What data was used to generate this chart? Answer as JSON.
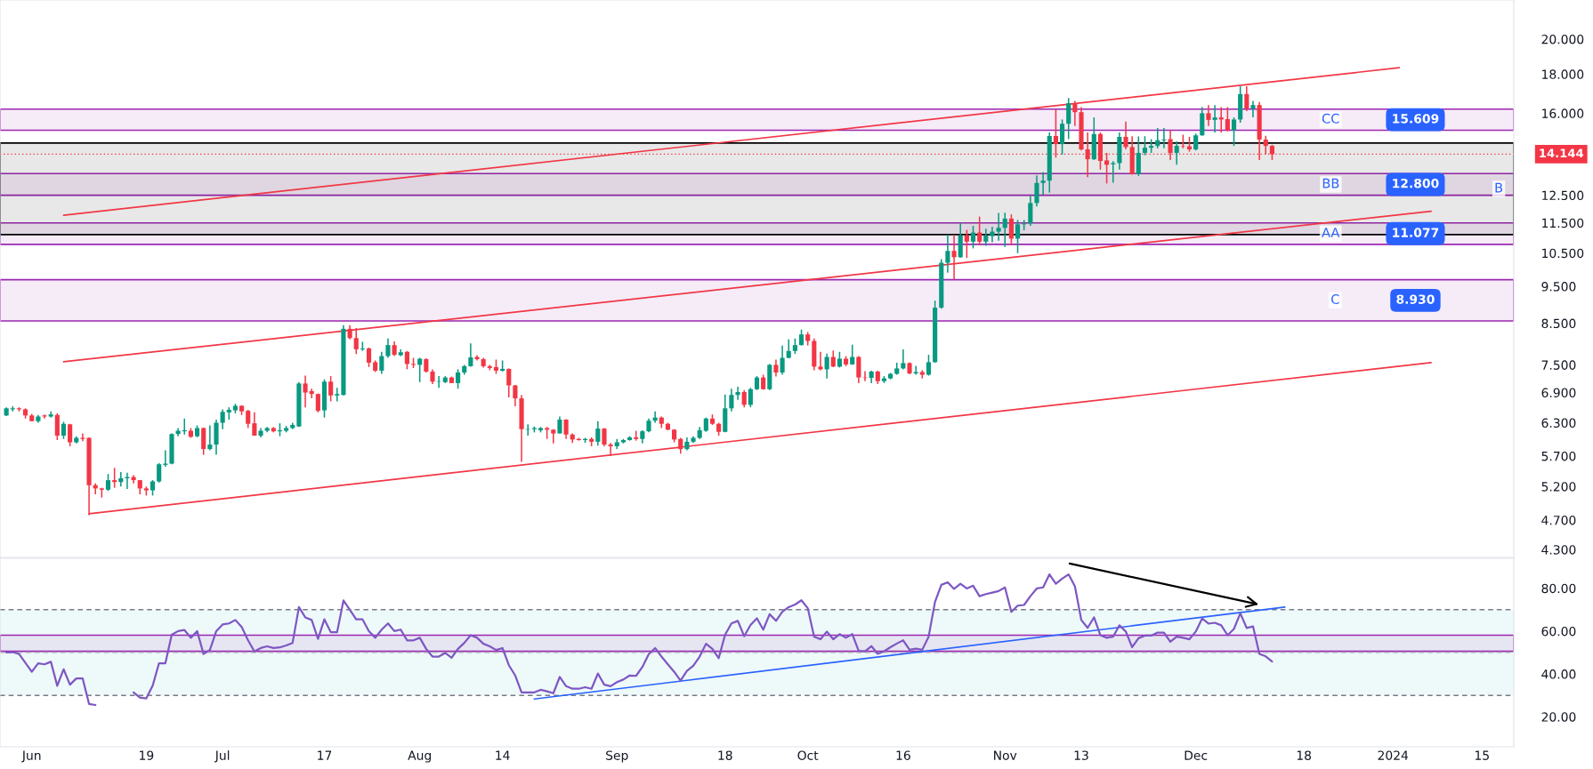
{
  "chart_data": [
    {
      "type": "candlestick",
      "log": true,
      "grid": false,
      "tick_labels": "y",
      "x": [
        "2023-05-28",
        "2023-05-29",
        "2023-05-30",
        "2023-05-31",
        "2023-06-01",
        "2023-06-02",
        "2023-06-03",
        "2023-06-04",
        "2023-06-05",
        "2023-06-06",
        "2023-06-07",
        "2023-06-08",
        "2023-06-09",
        "2023-06-10",
        "2023-06-11",
        "2023-06-12",
        "2023-06-13",
        "2023-06-14",
        "2023-06-15",
        "2023-06-16",
        "2023-06-17",
        "2023-06-18",
        "2023-06-19",
        "2023-06-20",
        "2023-06-21",
        "2023-06-22",
        "2023-06-23",
        "2023-06-24",
        "2023-06-25",
        "2023-06-26",
        "2023-06-27",
        "2023-06-28",
        "2023-06-29",
        "2023-06-30",
        "2023-07-01",
        "2023-07-02",
        "2023-07-03",
        "2023-07-04",
        "2023-07-05",
        "2023-07-06",
        "2023-07-07",
        "2023-07-08",
        "2023-07-09",
        "2023-07-10",
        "2023-07-11",
        "2023-07-12",
        "2023-07-13",
        "2023-07-14",
        "2023-07-15",
        "2023-07-16",
        "2023-07-17",
        "2023-07-18",
        "2023-07-19",
        "2023-07-20",
        "2023-07-21",
        "2023-07-22",
        "2023-07-23",
        "2023-07-24",
        "2023-07-25",
        "2023-07-26",
        "2023-07-27",
        "2023-07-28",
        "2023-07-29",
        "2023-07-30",
        "2023-07-31",
        "2023-08-01",
        "2023-08-02",
        "2023-08-03",
        "2023-08-04",
        "2023-08-05",
        "2023-08-06",
        "2023-08-07",
        "2023-08-08",
        "2023-08-09",
        "2023-08-10",
        "2023-08-11",
        "2023-08-12",
        "2023-08-13",
        "2023-08-14",
        "2023-08-15",
        "2023-08-16",
        "2023-08-17",
        "2023-08-18",
        "2023-08-19",
        "2023-08-20",
        "2023-08-21",
        "2023-08-22",
        "2023-08-23",
        "2023-08-24",
        "2023-08-25",
        "2023-08-26",
        "2023-08-27",
        "2023-08-28",
        "2023-08-29",
        "2023-08-30",
        "2023-08-31",
        "2023-09-01",
        "2023-09-02",
        "2023-09-03",
        "2023-09-04",
        "2023-09-05",
        "2023-09-06",
        "2023-09-07",
        "2023-09-08",
        "2023-09-09",
        "2023-09-10",
        "2023-09-11",
        "2023-09-12",
        "2023-09-13",
        "2023-09-14",
        "2023-09-15",
        "2023-09-16",
        "2023-09-17",
        "2023-09-18",
        "2023-09-19",
        "2023-09-20",
        "2023-09-21",
        "2023-09-22",
        "2023-09-23",
        "2023-09-24",
        "2023-09-25",
        "2023-09-26",
        "2023-09-27",
        "2023-09-28",
        "2023-09-29",
        "2023-09-30",
        "2023-10-01",
        "2023-10-02",
        "2023-10-03",
        "2023-10-04",
        "2023-10-05",
        "2023-10-06",
        "2023-10-07",
        "2023-10-08",
        "2023-10-09",
        "2023-10-10",
        "2023-10-11",
        "2023-10-12",
        "2023-10-13",
        "2023-10-14",
        "2023-10-15",
        "2023-10-16",
        "2023-10-17",
        "2023-10-18",
        "2023-10-19",
        "2023-10-20",
        "2023-10-21",
        "2023-10-22",
        "2023-10-23",
        "2023-10-24",
        "2023-10-25",
        "2023-10-26",
        "2023-10-27",
        "2023-10-28",
        "2023-10-29",
        "2023-10-30",
        "2023-10-31",
        "2023-11-01",
        "2023-11-02",
        "2023-11-03",
        "2023-11-04",
        "2023-11-05",
        "2023-11-06",
        "2023-11-07",
        "2023-11-08",
        "2023-11-09",
        "2023-11-10",
        "2023-11-11",
        "2023-11-12",
        "2023-11-13",
        "2023-11-14",
        "2023-11-15",
        "2023-11-16",
        "2023-11-17",
        "2023-11-18",
        "2023-11-19",
        "2023-11-20",
        "2023-11-21",
        "2023-11-22",
        "2023-11-23",
        "2023-11-24",
        "2023-11-25",
        "2023-11-26",
        "2023-11-27",
        "2023-11-28",
        "2023-11-29",
        "2023-11-30",
        "2023-12-01",
        "2023-12-02",
        "2023-12-03",
        "2023-12-04",
        "2023-12-05",
        "2023-12-06",
        "2023-12-07",
        "2023-12-08",
        "2023-12-09",
        "2023-12-10",
        "2023-12-11",
        "2023-12-12",
        "2023-12-13"
      ],
      "ohlc": [
        [
          6.44,
          6.6,
          6.43,
          6.58
        ],
        [
          6.56,
          6.62,
          6.52,
          6.58
        ],
        [
          6.58,
          6.6,
          6.52,
          6.56
        ],
        [
          6.56,
          6.58,
          6.38,
          6.44
        ],
        [
          6.44,
          6.47,
          6.33,
          6.33
        ],
        [
          6.33,
          6.45,
          6.3,
          6.42
        ],
        [
          6.44,
          6.46,
          6.38,
          6.42
        ],
        [
          6.42,
          6.52,
          6.4,
          6.46
        ],
        [
          6.45,
          6.48,
          5.98,
          6.06
        ],
        [
          6.06,
          6.32,
          6.0,
          6.28
        ],
        [
          6.27,
          6.28,
          5.87,
          5.94
        ],
        [
          5.94,
          6.05,
          5.92,
          6.02
        ],
        [
          6.02,
          6.1,
          5.96,
          6.0
        ],
        [
          6.02,
          6.03,
          4.77,
          5.22
        ],
        [
          5.22,
          5.25,
          5.08,
          5.17
        ],
        [
          5.17,
          5.18,
          5.03,
          5.15
        ],
        [
          5.15,
          5.4,
          5.13,
          5.3
        ],
        [
          5.3,
          5.5,
          5.18,
          5.27
        ],
        [
          5.27,
          5.43,
          5.2,
          5.33
        ],
        [
          5.33,
          5.42,
          5.16,
          5.35
        ],
        [
          5.35,
          5.38,
          5.25,
          5.3
        ],
        [
          5.3,
          5.3,
          5.08,
          5.17
        ],
        [
          5.17,
          5.2,
          5.06,
          5.14
        ],
        [
          5.14,
          5.3,
          5.06,
          5.28
        ],
        [
          5.28,
          5.58,
          5.26,
          5.56
        ],
        [
          5.55,
          5.8,
          5.52,
          5.57
        ],
        [
          5.57,
          6.1,
          5.56,
          6.09
        ],
        [
          6.09,
          6.2,
          6.05,
          6.15
        ],
        [
          6.14,
          6.38,
          6.08,
          6.16
        ],
        [
          6.15,
          6.2,
          6.02,
          6.04
        ],
        [
          6.05,
          6.25,
          6.03,
          6.2
        ],
        [
          6.2,
          6.21,
          5.72,
          5.82
        ],
        [
          5.82,
          6.25,
          5.8,
          5.9
        ],
        [
          5.9,
          6.36,
          5.72,
          6.3
        ],
        [
          6.3,
          6.56,
          6.18,
          6.51
        ],
        [
          6.5,
          6.6,
          6.36,
          6.55
        ],
        [
          6.54,
          6.67,
          6.48,
          6.63
        ],
        [
          6.63,
          6.64,
          6.45,
          6.52
        ],
        [
          6.53,
          6.55,
          6.2,
          6.28
        ],
        [
          6.29,
          6.5,
          6.06,
          6.06
        ],
        [
          6.06,
          6.2,
          6.03,
          6.15
        ],
        [
          6.15,
          6.22,
          6.12,
          6.2
        ],
        [
          6.2,
          6.22,
          6.12,
          6.14
        ],
        [
          6.14,
          6.29,
          6.05,
          6.16
        ],
        [
          6.15,
          6.24,
          6.12,
          6.2
        ],
        [
          6.2,
          6.3,
          6.18,
          6.26
        ],
        [
          6.23,
          7.12,
          6.22,
          7.09
        ],
        [
          7.09,
          7.26,
          6.6,
          6.9
        ],
        [
          6.93,
          6.98,
          6.78,
          6.87
        ],
        [
          6.87,
          6.88,
          6.5,
          6.53
        ],
        [
          6.54,
          7.18,
          6.4,
          7.13
        ],
        [
          7.13,
          7.25,
          6.72,
          6.84
        ],
        [
          6.84,
          7.0,
          6.72,
          6.87
        ],
        [
          6.85,
          8.45,
          6.84,
          8.36
        ],
        [
          8.36,
          8.45,
          8.1,
          8.13
        ],
        [
          8.13,
          8.38,
          7.75,
          7.86
        ],
        [
          7.86,
          8.04,
          7.82,
          7.88
        ],
        [
          7.88,
          7.9,
          7.45,
          7.55
        ],
        [
          7.56,
          7.6,
          7.34,
          7.37
        ],
        [
          7.37,
          7.8,
          7.3,
          7.7
        ],
        [
          7.7,
          8.12,
          7.66,
          7.96
        ],
        [
          7.96,
          8.05,
          7.7,
          7.73
        ],
        [
          7.72,
          7.86,
          7.7,
          7.79
        ],
        [
          7.8,
          7.82,
          7.4,
          7.52
        ],
        [
          7.52,
          7.66,
          7.43,
          7.5
        ],
        [
          7.5,
          7.66,
          7.12,
          7.64
        ],
        [
          7.63,
          7.65,
          7.33,
          7.35
        ],
        [
          7.35,
          7.4,
          7.08,
          7.13
        ],
        [
          7.13,
          7.25,
          7.0,
          7.14
        ],
        [
          7.12,
          7.25,
          7.1,
          7.22
        ],
        [
          7.22,
          7.24,
          7.1,
          7.1
        ],
        [
          7.1,
          7.4,
          6.98,
          7.33
        ],
        [
          7.33,
          7.5,
          7.28,
          7.47
        ],
        [
          7.47,
          8.0,
          7.46,
          7.67
        ],
        [
          7.68,
          7.72,
          7.6,
          7.63
        ],
        [
          7.63,
          7.66,
          7.44,
          7.47
        ],
        [
          7.47,
          7.5,
          7.38,
          7.43
        ],
        [
          7.45,
          7.62,
          7.3,
          7.37
        ],
        [
          7.37,
          7.6,
          7.35,
          7.41
        ],
        [
          7.41,
          7.42,
          6.8,
          7.05
        ],
        [
          7.05,
          7.06,
          6.62,
          6.78
        ],
        [
          6.78,
          6.85,
          5.6,
          6.18
        ],
        [
          6.17,
          6.27,
          6.06,
          6.18
        ],
        [
          6.18,
          6.23,
          6.12,
          6.2
        ],
        [
          6.16,
          6.22,
          6.12,
          6.2
        ],
        [
          6.2,
          6.22,
          6.0,
          6.17
        ],
        [
          6.17,
          6.18,
          5.92,
          6.1
        ],
        [
          6.1,
          6.42,
          6.1,
          6.36
        ],
        [
          6.36,
          6.37,
          6.0,
          6.08
        ],
        [
          6.08,
          6.1,
          5.93,
          5.99
        ],
        [
          6.0,
          6.02,
          5.97,
          5.98
        ],
        [
          5.98,
          6.02,
          5.93,
          6.0
        ],
        [
          6.0,
          6.03,
          5.87,
          5.95
        ],
        [
          5.95,
          6.33,
          5.88,
          6.19
        ],
        [
          6.19,
          6.2,
          5.87,
          5.9
        ],
        [
          5.9,
          5.93,
          5.7,
          5.87
        ],
        [
          5.87,
          6.0,
          5.82,
          5.94
        ],
        [
          5.94,
          6.0,
          5.92,
          5.98
        ],
        [
          5.98,
          6.05,
          5.97,
          6.03
        ],
        [
          6.03,
          6.15,
          5.97,
          6.0
        ],
        [
          6.0,
          6.16,
          5.92,
          6.14
        ],
        [
          6.14,
          6.38,
          6.12,
          6.34
        ],
        [
          6.34,
          6.52,
          6.3,
          6.4
        ],
        [
          6.4,
          6.42,
          6.2,
          6.28
        ],
        [
          6.28,
          6.3,
          6.16,
          6.17
        ],
        [
          6.17,
          6.18,
          5.94,
          5.99
        ],
        [
          6.0,
          6.02,
          5.74,
          5.82
        ],
        [
          5.82,
          6.03,
          5.8,
          5.95
        ],
        [
          5.95,
          6.05,
          5.93,
          6.02
        ],
        [
          6.02,
          6.22,
          6.0,
          6.16
        ],
        [
          6.15,
          6.4,
          6.13,
          6.38
        ],
        [
          6.38,
          6.46,
          6.26,
          6.28
        ],
        [
          6.28,
          6.3,
          6.06,
          6.13
        ],
        [
          6.13,
          6.86,
          6.12,
          6.58
        ],
        [
          6.58,
          6.98,
          6.52,
          6.85
        ],
        [
          6.85,
          7.02,
          6.75,
          6.91
        ],
        [
          6.91,
          6.95,
          6.6,
          6.65
        ],
        [
          6.65,
          7.0,
          6.6,
          6.97
        ],
        [
          6.97,
          7.25,
          6.95,
          7.22
        ],
        [
          7.22,
          7.28,
          6.96,
          6.97
        ],
        [
          6.97,
          7.52,
          6.95,
          7.5
        ],
        [
          7.5,
          7.62,
          7.24,
          7.33
        ],
        [
          7.33,
          7.95,
          7.28,
          7.66
        ],
        [
          7.66,
          8.1,
          7.65,
          7.82
        ],
        [
          7.82,
          8.12,
          7.75,
          7.96
        ],
        [
          7.96,
          8.34,
          7.95,
          8.22
        ],
        [
          8.22,
          8.28,
          7.95,
          8.06
        ],
        [
          8.06,
          8.12,
          7.38,
          7.46
        ],
        [
          7.46,
          7.8,
          7.38,
          7.4
        ],
        [
          7.4,
          7.76,
          7.2,
          7.68
        ],
        [
          7.68,
          7.83,
          7.45,
          7.46
        ],
        [
          7.46,
          7.8,
          7.44,
          7.64
        ],
        [
          7.64,
          7.7,
          7.47,
          7.51
        ],
        [
          7.51,
          7.97,
          7.5,
          7.68
        ],
        [
          7.68,
          7.7,
          7.1,
          7.22
        ],
        [
          7.22,
          7.36,
          7.14,
          7.21
        ],
        [
          7.21,
          7.37,
          7.1,
          7.35
        ],
        [
          7.35,
          7.37,
          7.08,
          7.14
        ],
        [
          7.14,
          7.25,
          7.1,
          7.2
        ],
        [
          7.2,
          7.32,
          7.18,
          7.3
        ],
        [
          7.3,
          7.55,
          7.28,
          7.42
        ],
        [
          7.42,
          7.86,
          7.4,
          7.54
        ],
        [
          7.54,
          7.56,
          7.29,
          7.31
        ],
        [
          7.31,
          7.48,
          7.28,
          7.34
        ],
        [
          7.34,
          7.38,
          7.2,
          7.28
        ],
        [
          7.28,
          7.73,
          7.26,
          7.56
        ],
        [
          7.56,
          9.1,
          7.55,
          8.91
        ],
        [
          8.91,
          10.31,
          8.88,
          10.2
        ],
        [
          10.2,
          11.1,
          9.9,
          10.57
        ],
        [
          10.57,
          11.1,
          9.7,
          10.37
        ],
        [
          10.37,
          11.5,
          10.35,
          11.07
        ],
        [
          11.07,
          11.26,
          10.35,
          10.87
        ],
        [
          10.87,
          11.4,
          10.65,
          11.17
        ],
        [
          11.17,
          11.72,
          10.75,
          10.87
        ],
        [
          10.87,
          11.3,
          10.73,
          11.07
        ],
        [
          11.05,
          11.37,
          10.85,
          11.2
        ],
        [
          11.2,
          11.85,
          10.9,
          11.33
        ],
        [
          11.33,
          11.86,
          10.7,
          11.65
        ],
        [
          11.65,
          11.8,
          10.75,
          10.97
        ],
        [
          10.97,
          11.6,
          10.5,
          11.45
        ],
        [
          11.45,
          11.6,
          11.25,
          11.48
        ],
        [
          11.48,
          12.47,
          11.4,
          12.21
        ],
        [
          12.21,
          13.27,
          12.08,
          12.97
        ],
        [
          12.97,
          13.4,
          12.52,
          13.06
        ],
        [
          13.06,
          15.1,
          12.6,
          14.94
        ],
        [
          14.94,
          16.2,
          14.0,
          14.58
        ],
        [
          14.58,
          15.7,
          14.13,
          15.5
        ],
        [
          15.5,
          16.75,
          14.8,
          16.49
        ],
        [
          16.49,
          16.6,
          15.4,
          16.05
        ],
        [
          16.05,
          16.3,
          14.3,
          14.35
        ],
        [
          14.35,
          15.1,
          13.2,
          13.93
        ],
        [
          13.93,
          15.8,
          13.9,
          15.03
        ],
        [
          15.03,
          15.1,
          13.5,
          13.86
        ],
        [
          13.88,
          14.2,
          12.95,
          13.7
        ],
        [
          13.72,
          13.85,
          12.98,
          13.77
        ],
        [
          13.77,
          15.1,
          13.5,
          14.9
        ],
        [
          14.9,
          15.6,
          14.35,
          14.45
        ],
        [
          14.45,
          14.93,
          13.3,
          13.32
        ],
        [
          13.32,
          14.92,
          13.25,
          14.2
        ],
        [
          14.2,
          14.93,
          14.1,
          14.42
        ],
        [
          14.42,
          14.8,
          14.2,
          14.5
        ],
        [
          14.5,
          15.3,
          14.4,
          14.75
        ],
        [
          14.74,
          15.3,
          14.4,
          14.78
        ],
        [
          14.8,
          15.2,
          13.9,
          14.2
        ],
        [
          14.2,
          14.7,
          13.7,
          14.5
        ],
        [
          14.5,
          15.0,
          14.4,
          14.48
        ],
        [
          14.48,
          14.9,
          14.25,
          14.35
        ],
        [
          14.35,
          15.05,
          14.3,
          14.97
        ],
        [
          14.97,
          16.3,
          14.95,
          16.0
        ],
        [
          16.0,
          16.4,
          15.4,
          15.68
        ],
        [
          15.68,
          16.4,
          15.1,
          15.8
        ],
        [
          15.8,
          16.3,
          15.1,
          15.7
        ],
        [
          15.72,
          16.3,
          15.15,
          15.2
        ],
        [
          15.2,
          15.8,
          14.5,
          15.7
        ],
        [
          15.7,
          17.35,
          15.55,
          16.95
        ],
        [
          16.95,
          17.35,
          16.1,
          16.23
        ],
        [
          16.23,
          16.6,
          15.8,
          16.4
        ],
        [
          16.4,
          16.55,
          13.9,
          14.78
        ],
        [
          14.78,
          14.95,
          14.15,
          14.5
        ],
        [
          14.5,
          14.55,
          13.9,
          14.144
        ]
      ],
      "colors": [
        "#089981",
        "#089981",
        "#f23645",
        "#f23645",
        "#f23645",
        "#089981",
        "#f23645",
        "#089981",
        "#f23645",
        "#089981",
        "#f23645",
        "#089981",
        "#f23645",
        "#f23645",
        "#f23645",
        "#f23645",
        "#089981",
        "#f23645",
        "#089981",
        "#089981",
        "#f23645",
        "#f23645",
        "#f23645",
        "#089981",
        "#089981",
        "#089981",
        "#089981",
        "#089981",
        "#089981",
        "#f23645",
        "#089981",
        "#f23645",
        "#089981",
        "#089981",
        "#089981",
        "#089981",
        "#089981",
        "#f23645",
        "#f23645",
        "#f23645",
        "#089981",
        "#089981",
        "#f23645",
        "#089981",
        "#089981",
        "#089981",
        "#089981",
        "#f23645",
        "#f23645",
        "#f23645",
        "#089981",
        "#f23645",
        "#089981",
        "#089981",
        "#f23645",
        "#f23645",
        "#089981",
        "#f23645",
        "#f23645",
        "#089981",
        "#089981",
        "#f23645",
        "#089981",
        "#f23645",
        "#f23645",
        "#089981",
        "#f23645",
        "#f23645",
        "#089981",
        "#089981",
        "#f23645",
        "#089981",
        "#089981",
        "#089981",
        "#f23645",
        "#f23645",
        "#f23645",
        "#f23645",
        "#089981",
        "#f23645",
        "#f23645",
        "#f23645",
        "#089981",
        "#089981",
        "#089981",
        "#f23645",
        "#f23645",
        "#089981",
        "#f23645",
        "#f23645",
        "#f23645",
        "#089981",
        "#f23645",
        "#089981",
        "#f23645",
        "#f23645",
        "#089981",
        "#089981",
        "#089981",
        "#f23645",
        "#089981",
        "#089981",
        "#089981",
        "#f23645",
        "#f23645",
        "#f23645",
        "#f23645",
        "#089981",
        "#089981",
        "#089981",
        "#089981",
        "#f23645",
        "#f23645",
        "#089981",
        "#089981",
        "#089981",
        "#f23645",
        "#089981",
        "#089981",
        "#f23645",
        "#089981",
        "#f23645",
        "#089981",
        "#089981",
        "#089981",
        "#089981",
        "#f23645",
        "#f23645",
        "#f23645",
        "#089981",
        "#f23645",
        "#089981",
        "#f23645",
        "#089981",
        "#f23645",
        "#f23645",
        "#089981",
        "#f23645",
        "#089981",
        "#089981",
        "#089981",
        "#089981",
        "#f23645",
        "#089981",
        "#f23645",
        "#089981",
        "#089981",
        "#089981",
        "#089981",
        "#f23645",
        "#089981",
        "#f23645",
        "#089981",
        "#f23645",
        "#089981",
        "#089981",
        "#089981",
        "#089981",
        "#f23645",
        "#089981",
        "#089981",
        "#089981",
        "#089981",
        "#089981",
        "#089981",
        "#f23645",
        "#089981",
        "#089981",
        "#f23645",
        "#f23645",
        "#f23645",
        "#089981",
        "#f23645",
        "#f23645",
        "#089981",
        "#089981",
        "#f23645",
        "#f23645",
        "#089981",
        "#089981",
        "#089981",
        "#089981",
        "#089981",
        "#f23645",
        "#089981",
        "#f23645",
        "#f23645",
        "#089981",
        "#089981",
        "#f23645",
        "#089981",
        "#f23645",
        "#f23645",
        "#089981",
        "#089981",
        "#f23645",
        "#089981",
        "#f23645",
        "#f23645",
        "#f23645"
      ],
      "series": [
        {
          "type": "line",
          "x": [
            "2023-06-06",
            "2024-01-02"
          ],
          "values": [
            11.77,
            18.35
          ],
          "color": "#f23645"
        },
        {
          "type": "line",
          "x": [
            "2023-06-06",
            "2024-01-07"
          ],
          "values": [
            7.57,
            11.91
          ],
          "color": "#f23645"
        },
        {
          "type": "line",
          "x": [
            "2023-06-10",
            "2024-01-07"
          ],
          "values": [
            4.79,
            7.55
          ],
          "color": "#f23645"
        }
      ],
      "bands": [
        {
          "axis": "y",
          "from": 15.2,
          "to": 16.2,
          "label": "CC",
          "color": "#9c27b0"
        },
        {
          "axis": "y",
          "from": 12.5,
          "to": 13.34,
          "label": "BB",
          "color": "#9c27b0"
        },
        {
          "axis": "y",
          "from": 10.78,
          "to": 11.5,
          "label": "AA",
          "color": "#9c27b0"
        },
        {
          "axis": "y",
          "from": 8.56,
          "to": 9.69,
          "label": "C",
          "color": "#9c27b0"
        },
        {
          "axis": "y",
          "from": 11.1,
          "to": 14.63,
          "label": "B",
          "color": "#000000"
        }
      ],
      "ref_lines": [
        {
          "axis": "y",
          "value": 14.144,
          "label": "14.144",
          "color": "#f23645",
          "line_style": "dotted"
        }
      ],
      "annotations": [
        "15.609",
        "12.800",
        "11.077",
        "8.930"
      ],
      "xlim": [
        "2023-05-27",
        "2024-01-20"
      ],
      "ylim": [
        4.2,
        22.5
      ],
      "yticks": [
        {
          "value": 4.3,
          "label": "4.300"
        },
        {
          "value": 4.7,
          "label": "4.700"
        },
        {
          "value": 5.2,
          "label": "5.200"
        },
        {
          "value": 5.7,
          "label": "5.700"
        },
        {
          "value": 6.3,
          "label": "6.300"
        },
        {
          "value": 6.9,
          "label": "6.900"
        },
        {
          "value": 7.5,
          "label": "7.500"
        },
        {
          "value": 8.5,
          "label": "8.500"
        },
        {
          "value": 9.5,
          "label": "9.500"
        },
        {
          "value": 10.5,
          "label": "10.500"
        },
        {
          "value": 11.5,
          "label": "11.500"
        },
        {
          "value": 12.5,
          "label": "12.500"
        },
        {
          "value": 16,
          "label": "16.000"
        },
        {
          "value": 18,
          "label": "18.000"
        },
        {
          "value": 20,
          "label": "20.000"
        }
      ]
    },
    {
      "type": "line",
      "grid": false,
      "x": [
        "2023-05-28",
        "2023-05-29",
        "2023-05-30",
        "2023-05-31",
        "2023-06-01",
        "2023-06-02",
        "2023-06-03",
        "2023-06-04",
        "2023-06-05",
        "2023-06-06",
        "2023-06-07",
        "2023-06-08",
        "2023-06-09",
        "2023-06-10",
        "2023-06-11",
        "2023-06-12",
        "2023-06-13",
        "2023-06-14",
        "2023-06-15",
        "2023-06-16",
        "2023-06-17",
        "2023-06-18",
        "2023-06-19",
        "2023-06-20",
        "2023-06-21",
        "2023-06-22",
        "2023-06-23",
        "2023-06-24",
        "2023-06-25",
        "2023-06-26",
        "2023-06-27",
        "2023-06-28",
        "2023-06-29",
        "2023-06-30",
        "2023-07-01",
        "2023-07-02",
        "2023-07-03",
        "2023-07-04",
        "2023-07-05",
        "2023-07-06",
        "2023-07-07",
        "2023-07-08",
        "2023-07-09",
        "2023-07-10",
        "2023-07-11",
        "2023-07-12",
        "2023-07-13",
        "2023-07-14",
        "2023-07-15",
        "2023-07-16",
        "2023-07-17",
        "2023-07-18",
        "2023-07-19",
        "2023-07-20",
        "2023-07-21",
        "2023-07-22",
        "2023-07-23",
        "2023-07-24",
        "2023-07-25",
        "2023-07-26",
        "2023-07-27",
        "2023-07-28",
        "2023-07-29",
        "2023-07-30",
        "2023-07-31",
        "2023-08-01",
        "2023-08-02",
        "2023-08-03",
        "2023-08-04",
        "2023-08-05",
        "2023-08-06",
        "2023-08-07",
        "2023-08-08",
        "2023-08-09",
        "2023-08-10",
        "2023-08-11",
        "2023-08-12",
        "2023-08-13",
        "2023-08-14",
        "2023-08-15",
        "2023-08-16",
        "2023-08-17",
        "2023-08-18",
        "2023-08-19",
        "2023-08-20",
        "2023-08-21",
        "2023-08-22",
        "2023-08-23",
        "2023-08-24",
        "2023-08-25",
        "2023-08-26",
        "2023-08-27",
        "2023-08-28",
        "2023-08-29",
        "2023-08-30",
        "2023-08-31",
        "2023-09-01",
        "2023-09-02",
        "2023-09-03",
        "2023-09-04",
        "2023-09-05",
        "2023-09-06",
        "2023-09-07",
        "2023-09-08",
        "2023-09-09",
        "2023-09-10",
        "2023-09-11",
        "2023-09-12",
        "2023-09-13",
        "2023-09-14",
        "2023-09-15",
        "2023-09-16",
        "2023-09-17",
        "2023-09-18",
        "2023-09-19",
        "2023-09-20",
        "2023-09-21",
        "2023-09-22",
        "2023-09-23",
        "2023-09-24",
        "2023-09-25",
        "2023-09-26",
        "2023-09-27",
        "2023-09-28",
        "2023-09-29",
        "2023-09-30",
        "2023-10-01",
        "2023-10-02",
        "2023-10-03",
        "2023-10-04",
        "2023-10-05",
        "2023-10-06",
        "2023-10-07",
        "2023-10-08",
        "2023-10-09",
        "2023-10-10",
        "2023-10-11",
        "2023-10-12",
        "2023-10-13",
        "2023-10-14",
        "2023-10-15",
        "2023-10-16",
        "2023-10-17",
        "2023-10-18",
        "2023-10-19",
        "2023-10-20",
        "2023-10-21",
        "2023-10-22",
        "2023-10-23",
        "2023-10-24",
        "2023-10-25",
        "2023-10-26",
        "2023-10-27",
        "2023-10-28",
        "2023-10-29",
        "2023-10-30",
        "2023-10-31",
        "2023-11-01",
        "2023-11-02",
        "2023-11-03",
        "2023-11-04",
        "2023-11-05",
        "2023-11-06",
        "2023-11-07",
        "2023-11-08",
        "2023-11-09",
        "2023-11-10",
        "2023-11-11",
        "2023-11-12",
        "2023-11-13",
        "2023-11-14",
        "2023-11-15",
        "2023-11-16",
        "2023-11-17",
        "2023-11-18",
        "2023-11-19",
        "2023-11-20",
        "2023-11-21",
        "2023-11-22",
        "2023-11-23",
        "2023-11-24",
        "2023-11-25",
        "2023-11-26",
        "2023-11-27",
        "2023-11-28",
        "2023-11-29",
        "2023-11-30",
        "2023-12-01",
        "2023-12-02",
        "2023-12-03",
        "2023-12-04",
        "2023-12-05",
        "2023-12-06",
        "2023-12-07",
        "2023-12-08",
        "2023-12-09",
        "2023-12-10",
        "2023-12-11",
        "2023-12-12",
        "2023-12-13"
      ],
      "series": [
        {
          "color": "#7e57c2",
          "values": [
            50,
            50.2,
            49.3,
            45.2,
            41,
            45,
            44.5,
            45.7,
            34.5,
            42.2,
            35,
            37.9,
            37.9,
            26,
            25.5,
            null,
            null,
            null,
            null,
            null,
            31.4,
            29,
            28.6,
            34.5,
            45,
            45,
            58.3,
            60,
            60.5,
            56.9,
            60,
            49.3,
            51.2,
            60,
            63.1,
            63.6,
            65.2,
            61.9,
            55.7,
            50.5,
            52.1,
            52.9,
            52.1,
            52.4,
            53.3,
            54.5,
            71.2,
            66.4,
            65.2,
            56.4,
            65.5,
            59.5,
            59.5,
            74.3,
            70,
            65.5,
            65.5,
            60,
            56.9,
            60.7,
            63.6,
            60,
            60.7,
            55.7,
            55.7,
            56.9,
            51.7,
            48.1,
            48.1,
            49.8,
            47.6,
            51.7,
            54.5,
            58.1,
            56.9,
            54.1,
            52.9,
            51.2,
            52.1,
            44.1,
            39.3,
            31.4,
            31.4,
            31.4,
            32.6,
            31.9,
            31,
            38.6,
            34.3,
            33.1,
            33.1,
            33.8,
            33.1,
            40.2,
            35,
            34.3,
            36.2,
            37.4,
            39.3,
            39.1,
            43.3,
            49.3,
            52.1,
            48.1,
            44.5,
            41,
            36.9,
            41.4,
            43.8,
            48.1,
            54.1,
            51.7,
            47.4,
            58.3,
            63.6,
            64.8,
            57.6,
            62.9,
            66,
            60.7,
            67.9,
            64.8,
            69,
            71.2,
            72.4,
            74.4,
            70.7,
            57.4,
            56.2,
            59.8,
            56.2,
            58.6,
            56.9,
            58.6,
            50.8,
            50.6,
            53,
            49.4,
            50.6,
            52.5,
            54.2,
            55.7,
            51.3,
            51.8,
            51.3,
            57.4,
            73.6,
            81.6,
            82.8,
            79.7,
            82.1,
            79.9,
            81.2,
            76.3,
            77.3,
            78,
            78.7,
            80.4,
            69,
            71.9,
            72.2,
            76.3,
            79.9,
            80.4,
            86.5,
            82.1,
            84.5,
            86.5,
            80.9,
            65.2,
            61.5,
            66.4,
            58.1,
            56.9,
            57.4,
            62.7,
            59.8,
            52.5,
            56.7,
            57.9,
            57.9,
            59.3,
            59.3,
            55,
            57.4,
            56.9,
            56.2,
            59.8,
            65.9,
            63.5,
            63.9,
            62.7,
            58.1,
            61,
            68.3,
            61.5,
            62.2,
            49.4,
            48.2,
            45.8
          ]
        },
        {
          "type": "line",
          "x": [
            "2023-08-19",
            "2023-12-15"
          ],
          "values": [
            28.3,
            71.2
          ],
          "color": "#2962ff"
        }
      ],
      "bands": [
        {
          "axis": "y",
          "from": 30,
          "to": 70,
          "color": "#eef9fa"
        },
        {
          "axis": "y",
          "from": 50.6,
          "to": 58.1,
          "color": "#9c27b0"
        }
      ],
      "ref_lines": [
        {
          "axis": "y",
          "value": 70,
          "color": "#787b86",
          "line_style": "dashed"
        },
        {
          "axis": "y",
          "value": 50,
          "color": "#b2b5be",
          "line_style": "dashed"
        },
        {
          "axis": "y",
          "value": 30,
          "color": "#787b86",
          "line_style": "dashed"
        }
      ],
      "xlim": [
        "2023-05-27",
        "2024-01-20"
      ],
      "xticks": [
        {
          "value": "2023-06-01",
          "label": "Jun"
        },
        {
          "value": "2023-06-19",
          "label": "19"
        },
        {
          "value": "2023-07-01",
          "label": "Jul"
        },
        {
          "value": "2023-07-17",
          "label": "17"
        },
        {
          "value": "2023-08-01",
          "label": "Aug"
        },
        {
          "value": "2023-08-14",
          "label": "14"
        },
        {
          "value": "2023-09-01",
          "label": "Sep"
        },
        {
          "value": "2023-09-18",
          "label": "18"
        },
        {
          "value": "2023-10-01",
          "label": "Oct"
        },
        {
          "value": "2023-10-16",
          "label": "16"
        },
        {
          "value": "2023-11-01",
          "label": "Nov"
        },
        {
          "value": "2023-11-13",
          "label": "13"
        },
        {
          "value": "2023-12-01",
          "label": "Dec"
        },
        {
          "value": "2023-12-18",
          "label": "18"
        },
        {
          "value": "2024-01-01",
          "label": "2024"
        },
        {
          "value": "2024-01-15",
          "label": "15"
        }
      ],
      "ylim": [
        6,
        94
      ],
      "yticks": [
        {
          "value": 20,
          "label": "20.00"
        },
        {
          "value": 40,
          "label": "40.00"
        },
        {
          "value": 60,
          "label": "60.00"
        },
        {
          "value": 80,
          "label": "80.00"
        }
      ]
    }
  ]
}
